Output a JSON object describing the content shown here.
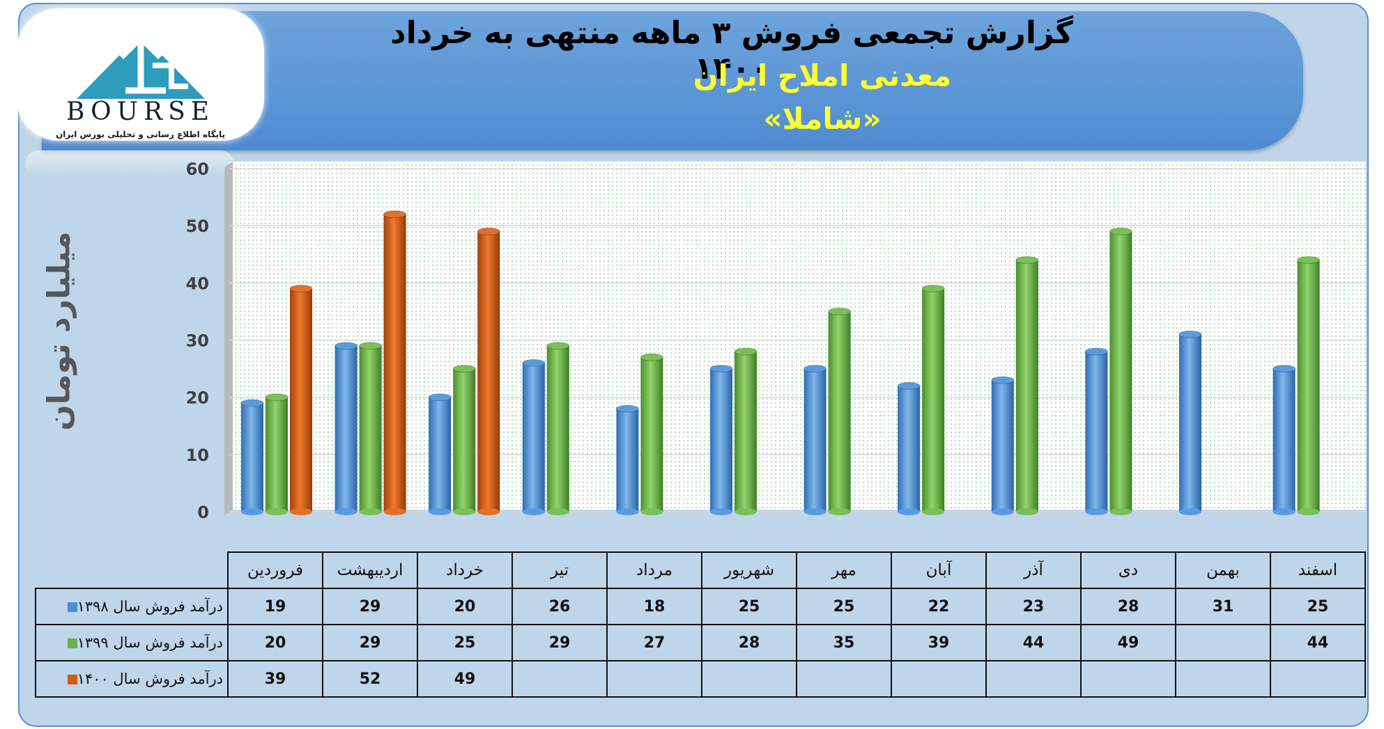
{
  "header": {
    "title": "گزارش تجمعی فروش ۳ ماهه منتهی به خرداد ۱۴۰۰",
    "company": "معدنی املاح ایران",
    "symbol": "«شاملا»"
  },
  "logo": {
    "name": "BOURSE",
    "tagline": "پایگاه اطلاع رسانی و تحلیلی بورس ایران"
  },
  "colors": {
    "series_1398": "#4a8fd6",
    "series_1399": "#6ab04c",
    "series_1400": "#d35a12",
    "panel": "#bfd5ea",
    "banner": "#5a95d6",
    "title_highlight": "#ffff33"
  },
  "chart_data": {
    "type": "bar",
    "categories": [
      "فروردین",
      "اردیبهشت",
      "خرداد",
      "تیر",
      "مرداد",
      "شهریور",
      "مهر",
      "آبان",
      "آذر",
      "دی",
      "بهمن",
      "اسفند"
    ],
    "series": [
      {
        "name": "درآمد فروش سال ۱۳۹۸",
        "values": [
          19,
          29,
          20,
          26,
          18,
          25,
          25,
          22,
          23,
          28,
          31,
          25
        ]
      },
      {
        "name": "درآمد فروش سال ۱۳۹۹",
        "values": [
          20,
          29,
          25,
          29,
          27,
          28,
          35,
          39,
          44,
          49,
          null,
          44
        ]
      },
      {
        "name": "درآمد فروش سال ۱۴۰۰",
        "values": [
          39,
          52,
          49,
          null,
          null,
          null,
          null,
          null,
          null,
          null,
          null,
          null
        ]
      }
    ],
    "ylabel": "میلیارد تومان",
    "ylim": [
      0,
      60
    ],
    "yticks": [
      0,
      10,
      20,
      30,
      40,
      50,
      60
    ],
    "grid": true,
    "legend": "data-table"
  }
}
